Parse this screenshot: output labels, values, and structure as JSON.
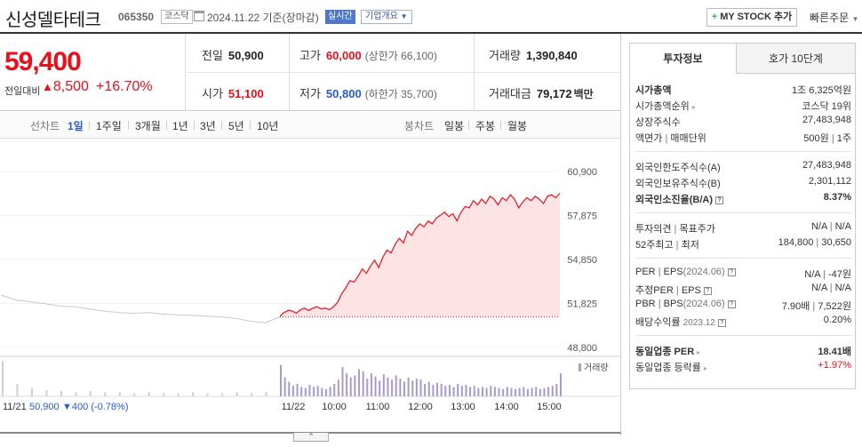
{
  "header": {
    "company_name": "신성델타테크",
    "code": "065350",
    "market": "코스닥",
    "date": "2024.11.22 기준(장마감)",
    "realtime": "실시간",
    "company_info": "기업개요",
    "mystock": "MY STOCK 추가",
    "quick_order": "빠른주문"
  },
  "price": {
    "current": "59,400",
    "prev_label": "전일대비",
    "change": "8,500",
    "rate": "+16.70%"
  },
  "stats": {
    "prev_close_label": "전일",
    "prev_close": "50,900",
    "high_label": "고가",
    "high": "60,000",
    "upper_limit": "(상한가 66,100)",
    "volume_label": "거래량",
    "volume": "1,390,840",
    "open_label": "시가",
    "open": "51,100",
    "low_label": "저가",
    "low": "50,800",
    "lower_limit": "(하한가 35,700)",
    "amount_label": "거래대금",
    "amount": "79,172",
    "amount_unit": "백만"
  },
  "chart_tabs": {
    "line_chart": "선차트",
    "periods": [
      "1일",
      "1주일",
      "3개월",
      "1년",
      "3년",
      "5년",
      "10년"
    ],
    "candle_chart": "봉차트",
    "candle_periods": [
      "일봉",
      "주봉",
      "월봉"
    ]
  },
  "colors": {
    "up": "#e8101a",
    "down": "#2a5bd7",
    "area_fill": "#fde3e4",
    "volume": "#a89ad0",
    "prev_line": "#c9c9c9"
  },
  "chart_data": {
    "type": "line",
    "y_ticks": [
      "60,900",
      "57,875",
      "54,850",
      "51,825",
      "48,800"
    ],
    "ylim": [
      48800,
      60900
    ],
    "x_ticks": [
      "11/22",
      "10:00",
      "11:00",
      "12:00",
      "13:00",
      "14:00",
      "15:00"
    ],
    "prev_day_label": "11/21",
    "prev_day_close": "50,900",
    "prev_day_change": "▼400 (-0.78%)",
    "volume_legend": "거래량",
    "reference_price": 50900,
    "prev_day_series": [
      52400,
      52050,
      51950,
      51800,
      51650,
      51600,
      51450,
      51300,
      51200,
      51150,
      51200,
      51100,
      51050,
      51000,
      50950,
      50900,
      50800,
      50600,
      50500,
      50900
    ],
    "today_series": [
      50950,
      51200,
      51350,
      51300,
      51150,
      51400,
      51500,
      51350,
      51500,
      51600,
      51450,
      51500,
      51400,
      51600,
      51900,
      52500,
      52900,
      53400,
      53300,
      53700,
      54200,
      53900,
      54400,
      54800,
      54300,
      55000,
      55500,
      55300,
      55900,
      56300,
      56000,
      56800,
      56500,
      57000,
      57300,
      57100,
      57500,
      57300,
      57700,
      57900,
      58100,
      57800,
      58000,
      57500,
      58100,
      58500,
      58400,
      58900,
      58600,
      59000,
      58700,
      59200,
      59000,
      58600,
      59100,
      58900,
      59300,
      59000,
      58400,
      58800,
      59100,
      58900,
      59200,
      59000,
      58700,
      59200,
      59300,
      59100,
      59400
    ],
    "today_volume": [
      30,
      18,
      14,
      10,
      12,
      9,
      8,
      11,
      9,
      10,
      8,
      7,
      9,
      12,
      16,
      28,
      22,
      18,
      20,
      26,
      24,
      17,
      22,
      19,
      15,
      21,
      18,
      16,
      20,
      17,
      14,
      18,
      15,
      17,
      16,
      12,
      14,
      11,
      13,
      12,
      10,
      11,
      9,
      12,
      10,
      11,
      9,
      10,
      8,
      9,
      8,
      10,
      9,
      8,
      7,
      9,
      8,
      7,
      8,
      9,
      7,
      8,
      9,
      7,
      8,
      9,
      10,
      12,
      22
    ],
    "prev_volume": [
      34,
      12,
      8,
      6,
      5,
      4,
      5,
      4,
      4,
      3,
      4,
      3,
      3,
      4,
      3,
      3,
      4,
      3,
      4,
      8
    ]
  },
  "side": {
    "tab_invest": "투자정보",
    "tab_hoga": "호가 10단계",
    "rows": [
      {
        "k": "시가총액",
        "v": "1조 6,325억원"
      },
      {
        "k": "시가총액순위",
        "v": "코스닥 19위"
      },
      {
        "k": "상장주식수",
        "v": "27,483,948"
      },
      {
        "k": "액면가",
        "k2": "매매단위",
        "v": "500원",
        "v2": "1주"
      },
      {
        "k": "외국인한도주식수(A)",
        "v": "27,483,948"
      },
      {
        "k": "외국인보유주식수(B)",
        "v": "2,301,112"
      },
      {
        "k": "외국인소진율(B/A)",
        "v": "8.37%"
      },
      {
        "k": "투자의견",
        "k2": "목표주가",
        "v": "N/A",
        "v2": "N/A"
      },
      {
        "k": "52주최고",
        "k2": "최저",
        "v": "184,800",
        "v2": "30,650"
      },
      {
        "k": "PER",
        "k2": "EPS",
        "k3": "(2024.06)",
        "v": "N/A",
        "v2": "-47원"
      },
      {
        "k": "추정PER",
        "k2": "EPS",
        "v": "N/A",
        "v2": "N/A"
      },
      {
        "k": "PBR",
        "k2": "BPS",
        "k3": "(2024.06)",
        "v": "7.90배",
        "v2": "7,522원"
      },
      {
        "k": "배당수익률",
        "k3": "2023.12",
        "v": "0.20%"
      },
      {
        "k": "동일업종 PER",
        "v": "18.41배"
      },
      {
        "k": "동일업종 등락률",
        "v": "+1.97%"
      }
    ]
  }
}
